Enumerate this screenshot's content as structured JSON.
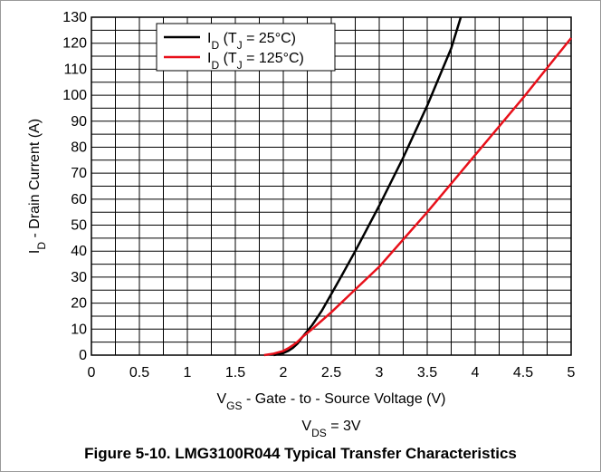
{
  "chart_data": {
    "type": "line",
    "xlabel": {
      "main": "V",
      "sub": "GS",
      "rest": " - Gate - to - Source Voltage (V)"
    },
    "ylabel": {
      "main": "I",
      "sub": "D",
      "rest": " - Drain Current (A)"
    },
    "xlim": [
      0,
      5
    ],
    "ylim": [
      0,
      130
    ],
    "x_ticks": [
      "0",
      "0.5",
      "1",
      "1.5",
      "2",
      "2.5",
      "3",
      "3.5",
      "4",
      "4.5",
      "5"
    ],
    "y_ticks": [
      "0",
      "10",
      "20",
      "30",
      "40",
      "50",
      "60",
      "70",
      "80",
      "90",
      "100",
      "110",
      "120",
      "130"
    ],
    "x_minor_grid": 0.25,
    "y_minor_grid": 5,
    "grid": true,
    "legend_position": "top-left",
    "series": [
      {
        "name": {
          "a": "I",
          "a_sub": "D",
          "b": " (T",
          "b_sub": "J",
          "c": " = 25°C)"
        },
        "color": "#000000",
        "x": [
          1.9,
          2.0,
          2.05,
          2.1,
          2.15,
          2.2,
          2.3,
          2.4,
          2.5,
          2.6,
          2.75,
          3.0,
          3.25,
          3.5,
          3.75,
          3.85
        ],
        "y": [
          0,
          0.8,
          1.6,
          2.8,
          4.5,
          7.0,
          11.5,
          17.0,
          23.5,
          30.0,
          40.0,
          57.5,
          76.0,
          96.0,
          118.0,
          130.0
        ]
      },
      {
        "name": {
          "a": "I",
          "a_sub": "D",
          "b": " (T",
          "b_sub": "J",
          "c": " = 125°C)"
        },
        "color": "#e8101a",
        "x": [
          1.8,
          1.9,
          2.0,
          2.05,
          2.1,
          2.15,
          2.2,
          2.3,
          2.5,
          3.0,
          3.5,
          4.0,
          4.5,
          5.0
        ],
        "y": [
          0,
          0.6,
          1.6,
          2.6,
          3.8,
          5.2,
          7.0,
          10.0,
          16.5,
          34.0,
          55.0,
          77.0,
          99.0,
          122.0
        ]
      }
    ],
    "annotation": {
      "main": "V",
      "sub": "DS",
      "rest": " = 3V"
    }
  },
  "caption": "Figure 5-10. LMG3100R044 Typical Transfer Characteristics"
}
